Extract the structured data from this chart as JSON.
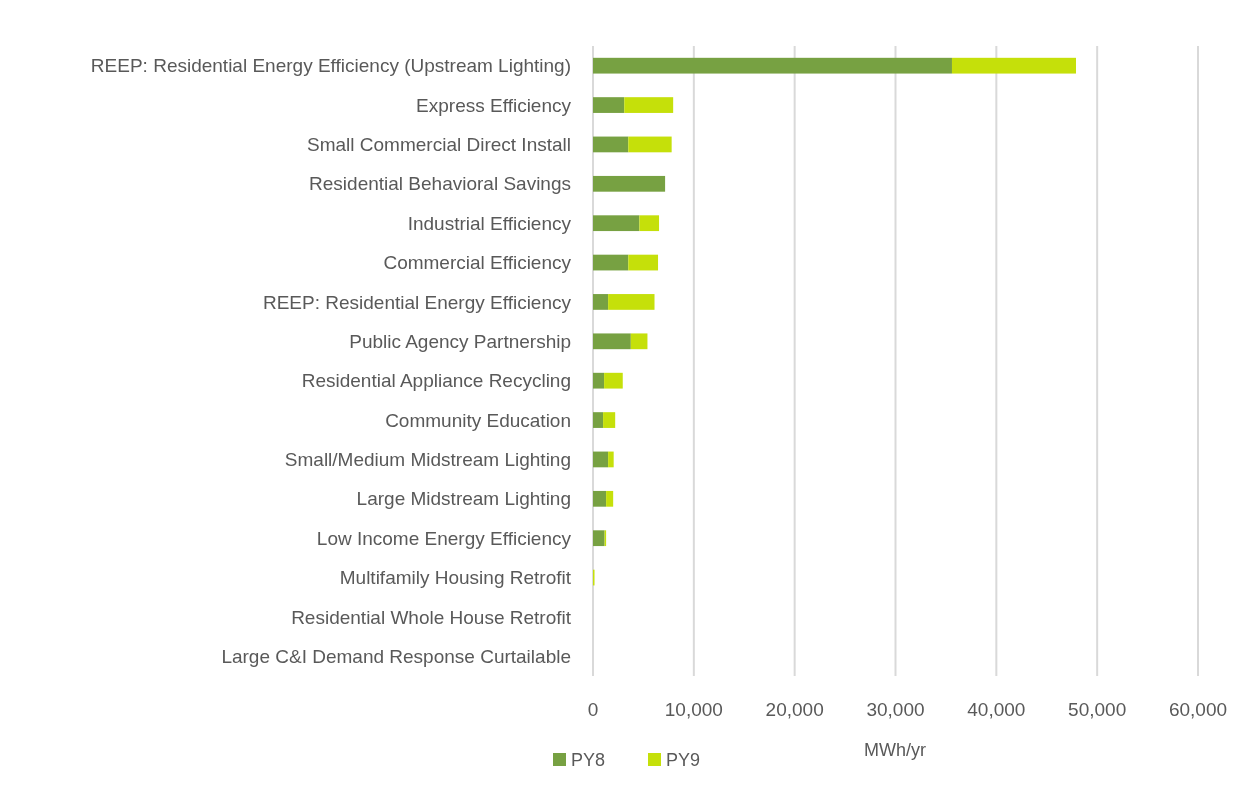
{
  "chart_data": {
    "type": "bar",
    "orientation": "horizontal",
    "stacked": true,
    "categories": [
      "REEP: Residential Energy Efficiency (Upstream Lighting)",
      "Express Efficiency",
      "Small Commercial Direct Install",
      "Residential Behavioral Savings",
      "Industrial Efficiency",
      "Commercial Efficiency",
      "REEP: Residential Energy Efficiency",
      "Public Agency Partnership",
      "Residential Appliance Recycling",
      "Community Education",
      "Small/Medium Midstream Lighting",
      "Large Midstream Lighting",
      "Low Income Energy Efficiency",
      "Multifamily Housing Retrofit",
      "Residential Whole House Retrofit",
      "Large C&I Demand Response Curtailable"
    ],
    "series": [
      {
        "name": "PY8",
        "color": "#77a142",
        "values": [
          35600,
          3100,
          3500,
          7150,
          4600,
          3500,
          1500,
          3750,
          1100,
          1000,
          1500,
          1300,
          1150,
          0,
          0,
          0
        ]
      },
      {
        "name": "PY9",
        "color": "#c5e00a",
        "values": [
          12300,
          4850,
          4300,
          0,
          1950,
          2950,
          4600,
          1650,
          1850,
          1200,
          550,
          700,
          150,
          150,
          0,
          0
        ]
      }
    ],
    "xlim": [
      0,
      60000
    ],
    "xticks": [
      {
        "value": 0,
        "label": "0"
      },
      {
        "value": 10000,
        "label": "10,000"
      },
      {
        "value": 20000,
        "label": "20,000"
      },
      {
        "value": 30000,
        "label": "30,000"
      },
      {
        "value": 40000,
        "label": "40,000"
      },
      {
        "value": 50000,
        "label": "50,000"
      },
      {
        "value": 60000,
        "label": "60,000"
      }
    ],
    "xlabel": "MWh/yr",
    "grid": "x",
    "legend": "bottom left"
  }
}
